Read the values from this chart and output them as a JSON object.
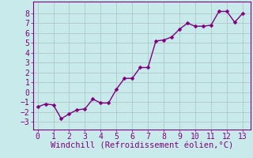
{
  "x": [
    0,
    0.5,
    1,
    1.5,
    2,
    2.5,
    3,
    3.5,
    4,
    4.5,
    5,
    5.5,
    6,
    6.5,
    7,
    7.5,
    8,
    8.5,
    9,
    9.5,
    10,
    10.5,
    11,
    11.5,
    12,
    12.5,
    13
  ],
  "y": [
    -1.5,
    -1.2,
    -1.3,
    -2.7,
    -2.2,
    -1.8,
    -1.7,
    -0.7,
    -1.1,
    -1.1,
    0.3,
    1.4,
    1.4,
    2.5,
    2.5,
    5.2,
    5.3,
    5.6,
    6.4,
    7.0,
    6.7,
    6.7,
    6.8,
    8.2,
    8.2,
    7.1,
    8.0
  ],
  "line_color": "#800080",
  "marker_color": "#800080",
  "background_color": "#c8eaea",
  "grid_color": "#b0c8c8",
  "xlabel": "Windchill (Refroidissement éolien,°C)",
  "xlabel_color": "#800080",
  "xlabel_fontsize": 7.5,
  "tick_color": "#800080",
  "tick_fontsize": 7,
  "xlim": [
    -0.3,
    13.5
  ],
  "ylim": [
    -3.8,
    9.2
  ],
  "yticks": [
    -3,
    -2,
    -1,
    0,
    1,
    2,
    3,
    4,
    5,
    6,
    7,
    8
  ],
  "xticks": [
    0,
    1,
    2,
    3,
    4,
    5,
    6,
    7,
    8,
    9,
    10,
    11,
    12,
    13
  ],
  "line_width": 1.0,
  "marker_size": 2.5,
  "spine_color": "#800080"
}
